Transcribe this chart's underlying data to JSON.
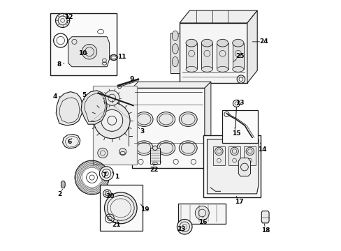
{
  "bg_color": "#ffffff",
  "line_color": "#1a1a1a",
  "fig_width": 4.89,
  "fig_height": 3.6,
  "dpi": 100,
  "label_positions": {
    "1": [
      0.285,
      0.295,
      0.26,
      0.32
    ],
    "2": [
      0.055,
      0.225,
      0.072,
      0.252
    ],
    "3": [
      0.385,
      0.475,
      0.365,
      0.5
    ],
    "4": [
      0.038,
      0.615,
      0.065,
      0.615
    ],
    "5": [
      0.155,
      0.62,
      0.155,
      0.595
    ],
    "6": [
      0.095,
      0.435,
      0.11,
      0.455
    ],
    "7": [
      0.235,
      0.3,
      0.225,
      0.325
    ],
    "8": [
      0.055,
      0.745,
      0.082,
      0.75
    ],
    "9": [
      0.345,
      0.685,
      0.33,
      0.66
    ],
    "10": [
      0.148,
      0.79,
      0.175,
      0.788
    ],
    "11": [
      0.305,
      0.775,
      0.288,
      0.775
    ],
    "12": [
      0.092,
      0.935,
      0.085,
      0.902
    ],
    "13": [
      0.775,
      0.59,
      0.765,
      0.568
    ],
    "14": [
      0.865,
      0.405,
      0.855,
      0.438
    ],
    "15": [
      0.762,
      0.468,
      0.752,
      0.498
    ],
    "16": [
      0.628,
      0.115,
      0.628,
      0.145
    ],
    "17": [
      0.772,
      0.195,
      0.758,
      0.225
    ],
    "18": [
      0.878,
      0.08,
      0.872,
      0.115
    ],
    "19": [
      0.395,
      0.165,
      0.375,
      0.192
    ],
    "20": [
      0.258,
      0.218,
      0.268,
      0.218
    ],
    "21": [
      0.282,
      0.102,
      0.292,
      0.13
    ],
    "22": [
      0.432,
      0.322,
      0.432,
      0.355
    ],
    "23": [
      0.543,
      0.085,
      0.552,
      0.108
    ],
    "24": [
      0.87,
      0.835,
      0.818,
      0.835
    ],
    "25": [
      0.775,
      0.778,
      0.745,
      0.75
    ]
  }
}
